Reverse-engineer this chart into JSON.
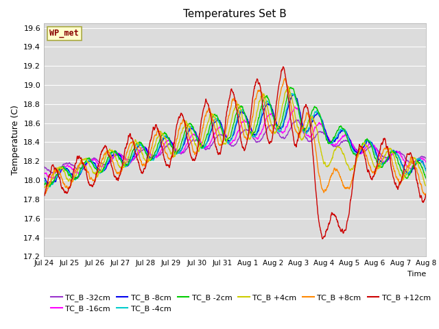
{
  "title": "Temperatures Set B",
  "ylabel": "Temperature (C)",
  "xlabel": "Time",
  "ylim": [
    17.2,
    19.65
  ],
  "background_color": "#dcdcdc",
  "figure_facecolor": "#ffffff",
  "wp_met_label": "WP_met",
  "wp_met_color": "#880000",
  "wp_met_bg": "#ffffcc",
  "wp_met_border": "#aaaa44",
  "series": [
    {
      "label": "TC_B -32cm",
      "color": "#9933cc",
      "linewidth": 1.0
    },
    {
      "label": "TC_B -16cm",
      "color": "#ff00ff",
      "linewidth": 1.0
    },
    {
      "label": "TC_B -8cm",
      "color": "#0000ee",
      "linewidth": 1.0
    },
    {
      "label": "TC_B -4cm",
      "color": "#00cccc",
      "linewidth": 1.0
    },
    {
      "label": "TC_B -2cm",
      "color": "#00cc00",
      "linewidth": 1.0
    },
    {
      "label": "TC_B +4cm",
      "color": "#cccc00",
      "linewidth": 1.0
    },
    {
      "label": "TC_B +8cm",
      "color": "#ff8800",
      "linewidth": 1.0
    },
    {
      "label": "TC_B +12cm",
      "color": "#cc0000",
      "linewidth": 1.0
    }
  ],
  "xtick_labels": [
    "Jul 24",
    "Jul 25",
    "Jul 26",
    "Jul 27",
    "Jul 28",
    "Jul 29",
    "Jul 30",
    "Jul 31",
    "Aug 1",
    "Aug 2",
    "Aug 3",
    "Aug 4",
    "Aug 5",
    "Aug 6",
    "Aug 7",
    "Aug 8"
  ],
  "ytick_values": [
    17.2,
    17.4,
    17.6,
    17.8,
    18.0,
    18.2,
    18.4,
    18.6,
    18.8,
    19.0,
    19.2,
    19.4,
    19.6
  ],
  "grid_color": "#ffffff",
  "legend_fontsize": 8,
  "title_fontsize": 11
}
